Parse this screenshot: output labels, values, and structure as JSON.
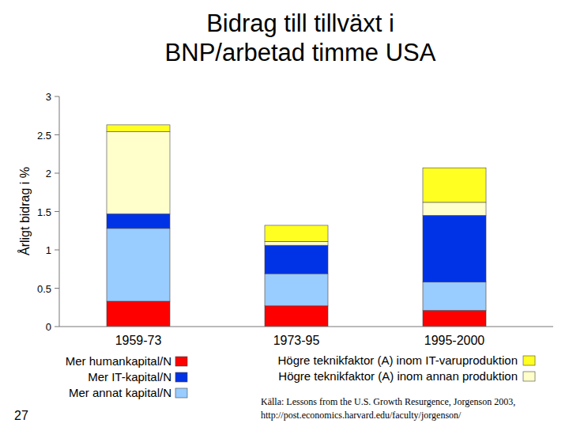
{
  "chart_data": {
    "type": "bar",
    "stacked": true,
    "title": "Bidrag till tillväxt i\nBNP/arbetad timme USA",
    "y_label": "Årligt bidrag i %",
    "categories": [
      "1959-73",
      "1973-95",
      "1995-2000"
    ],
    "series": [
      {
        "name": "Mer humankapital/N",
        "color": "#ff0000",
        "values": [
          0.33,
          0.27,
          0.21
        ]
      },
      {
        "name": "Mer annat kapital/N",
        "color": "#99ccff",
        "values": [
          0.95,
          0.42,
          0.37
        ]
      },
      {
        "name": "Mer IT-kapital/N",
        "color": "#0033e6",
        "values": [
          0.19,
          0.37,
          0.87
        ]
      },
      {
        "name": "Högre teknikfaktor (A) inom annan produktion",
        "color": "#ffffcc",
        "values": [
          1.07,
          0.05,
          0.17
        ]
      },
      {
        "name": "Högre teknikfaktor (A) inom IT-varuproduktion",
        "color": "#ffff22",
        "values": [
          0.09,
          0.21,
          0.45
        ]
      }
    ],
    "ylim": [
      0,
      3
    ],
    "yticks": [
      0,
      0.5,
      1,
      1.5,
      2,
      2.5,
      3
    ],
    "grid": false,
    "annotations": [
      "Källa: Lessons from the U.S. Growth Resurgence, Jorgenson 2003,\nhttp://post.economics.harvard.edu/faculty/jorgenson/",
      "27"
    ]
  }
}
